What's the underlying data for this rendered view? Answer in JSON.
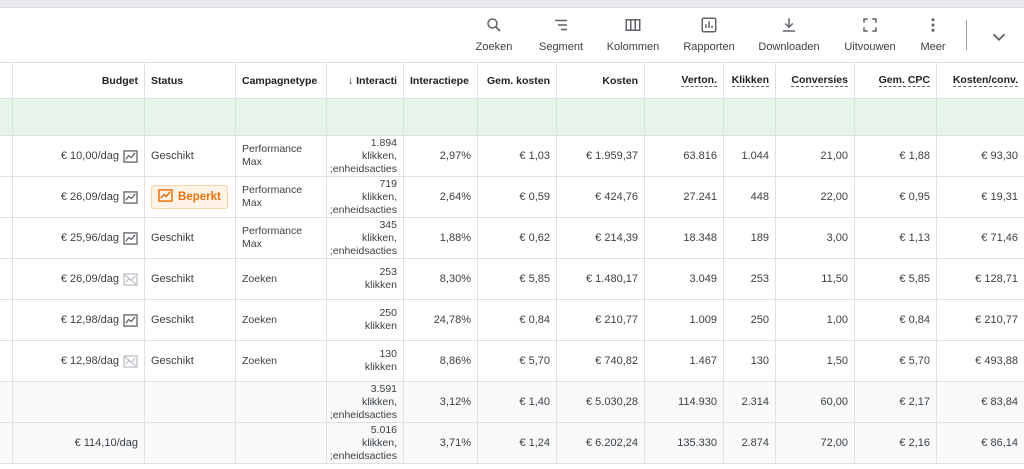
{
  "toolbar": {
    "items": [
      {
        "label": "Zoeken",
        "icon": "search-icon"
      },
      {
        "label": "Segment",
        "icon": "segment-icon"
      },
      {
        "label": "Kolommen",
        "icon": "columns-icon"
      },
      {
        "label": "Rapporten",
        "icon": "reports-icon"
      },
      {
        "label": "Downloaden",
        "icon": "download-icon"
      },
      {
        "label": "Uitvouwen",
        "icon": "expand-icon"
      },
      {
        "label": "Meer",
        "icon": "more-vert-icon"
      }
    ]
  },
  "table": {
    "headers": {
      "budget": "Budget",
      "status": "Status",
      "type": "Campagnetype",
      "interactions": "Interacti",
      "interaction_rate": "Interactiepe",
      "avg_cost": "Gem. kosten",
      "cost": "Kosten",
      "impressions": "Verton.",
      "clicks": "Klikken",
      "conversions": "Conversies",
      "avg_cpc": "Gem. CPC",
      "cost_per_conv": "Kosten/conv."
    },
    "rows": [
      {
        "budget": "€ 10,00/dag",
        "status": "Geschikt",
        "type": "Performance Max",
        "interactions": "1.894 klikken, ;enheidsacties",
        "interaction_rate": "2,97%",
        "avg_cost": "€ 1,03",
        "cost": "€ 1.959,37",
        "impressions": "63.816",
        "clicks": "1.044",
        "conversions": "21,00",
        "avg_cpc": "€ 1,88",
        "cost_per_conv": "€ 93,30"
      },
      {
        "budget": "€ 26,09/dag",
        "status": "Beperkt",
        "type": "Performance Max",
        "interactions": "719 klikken, ;enheidsacties",
        "interaction_rate": "2,64%",
        "avg_cost": "€ 0,59",
        "cost": "€ 424,76",
        "impressions": "27.241",
        "clicks": "448",
        "conversions": "22,00",
        "avg_cpc": "€ 0,95",
        "cost_per_conv": "€ 19,31"
      },
      {
        "budget": "€ 25,96/dag",
        "status": "Geschikt",
        "type": "Performance Max",
        "interactions": "345 klikken, ;enheidsacties",
        "interaction_rate": "1,88%",
        "avg_cost": "€ 0,62",
        "cost": "€ 214,39",
        "impressions": "18.348",
        "clicks": "189",
        "conversions": "3,00",
        "avg_cpc": "€ 1,13",
        "cost_per_conv": "€ 71,46"
      },
      {
        "budget": "€ 26,09/dag",
        "status": "Geschikt",
        "type": "Zoeken",
        "interactions": "253 klikken",
        "interaction_rate": "8,30%",
        "avg_cost": "€ 5,85",
        "cost": "€ 1.480,17",
        "impressions": "3.049",
        "clicks": "253",
        "conversions": "11,50",
        "avg_cpc": "€ 5,85",
        "cost_per_conv": "€ 128,71"
      },
      {
        "budget": "€ 12,98/dag",
        "status": "Geschikt",
        "type": "Zoeken",
        "interactions": "250 klikken",
        "interaction_rate": "24,78%",
        "avg_cost": "€ 0,84",
        "cost": "€ 210,77",
        "impressions": "1.009",
        "clicks": "250",
        "conversions": "1,00",
        "avg_cpc": "€ 0,84",
        "cost_per_conv": "€ 210,77"
      },
      {
        "budget": "€ 12,98/dag",
        "status": "Geschikt",
        "type": "Zoeken",
        "interactions": "130 klikken",
        "interaction_rate": "8,86%",
        "avg_cost": "€ 5,70",
        "cost": "€ 740,82",
        "impressions": "1.467",
        "clicks": "130",
        "conversions": "1,50",
        "avg_cpc": "€ 5,70",
        "cost_per_conv": "€ 493,88"
      }
    ],
    "totals": [
      {
        "budget": "",
        "interactions": "3.591 klikken, ;enheidsacties",
        "interaction_rate": "3,12%",
        "avg_cost": "€ 1,40",
        "cost": "€ 5.030,28",
        "impressions": "114.930",
        "clicks": "2.314",
        "conversions": "60,00",
        "avg_cpc": "€ 2,17",
        "cost_per_conv": "€ 83,84"
      },
      {
        "budget": "€ 114,10/dag",
        "interactions": "5.016 klikken, ;enheidsacties",
        "interaction_rate": "3,71%",
        "avg_cost": "€ 1,24",
        "cost": "€ 6.202,24",
        "impressions": "135.330",
        "clicks": "2.874",
        "conversions": "72,00",
        "avg_cpc": "€ 2,16",
        "cost_per_conv": "€ 86,14"
      }
    ]
  },
  "colors": {
    "accent": "#1a73e8",
    "warning": "#e8710a",
    "highlight_row": "#e6f4ea"
  }
}
